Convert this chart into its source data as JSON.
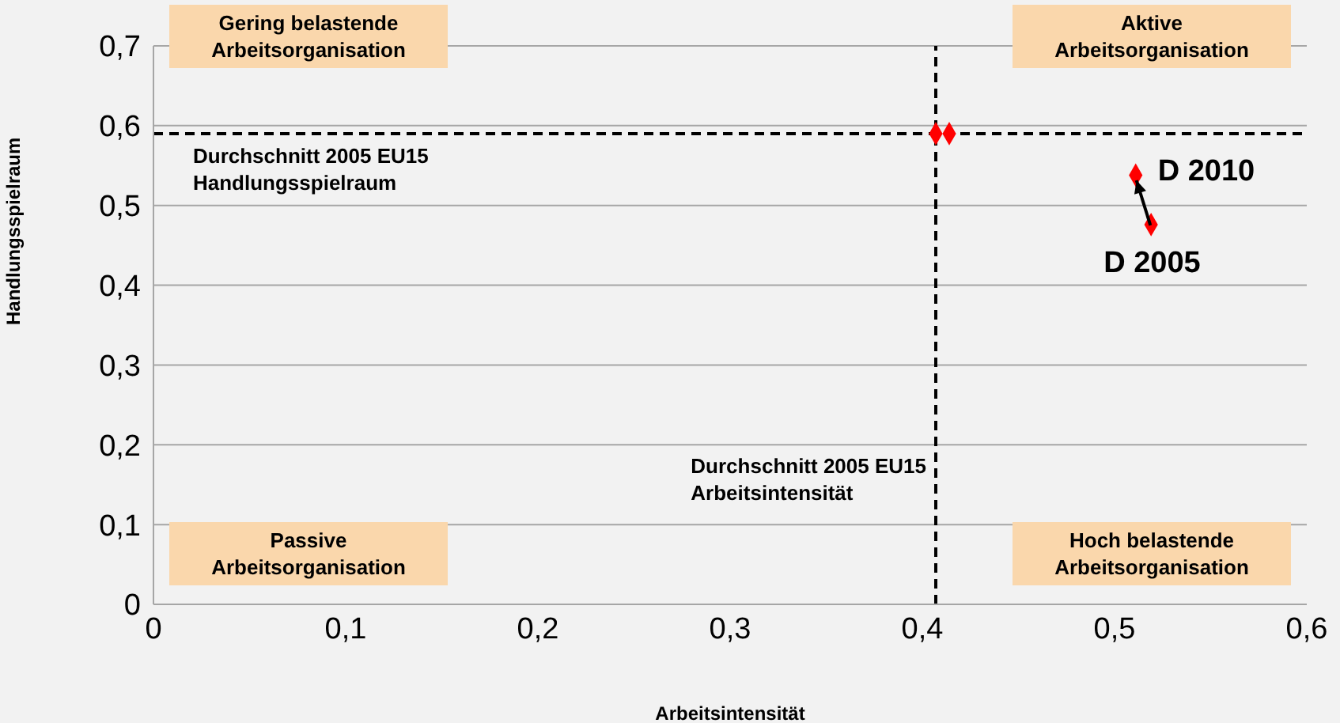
{
  "chart_data": {
    "type": "scatter",
    "xlabel": "Arbeitsintensität",
    "ylabel": "Handlungsspielraum",
    "xlim": [
      0,
      0.6
    ],
    "xticks": [
      {
        "value": 0,
        "label": "0"
      },
      {
        "value": 0.1,
        "label": "0,1"
      },
      {
        "value": 0.2,
        "label": "0,2"
      },
      {
        "value": 0.3,
        "label": "0,3"
      },
      {
        "value": 0.4,
        "label": "0,4"
      },
      {
        "value": 0.5,
        "label": "0,5"
      },
      {
        "value": 0.6,
        "label": "0,6"
      }
    ],
    "ylim": [
      0,
      0.7
    ],
    "yticks": [
      {
        "value": 0,
        "label": "0"
      },
      {
        "value": 0.1,
        "label": "0,1"
      },
      {
        "value": 0.2,
        "label": "0,2"
      },
      {
        "value": 0.3,
        "label": "0,3"
      },
      {
        "value": 0.4,
        "label": "0,4"
      },
      {
        "value": 0.5,
        "label": "0,5"
      },
      {
        "value": 0.6,
        "label": "0,6"
      },
      {
        "value": 0.7,
        "label": "0,7"
      }
    ],
    "grid": "y",
    "marker": "diamond",
    "legend": false,
    "series": [
      {
        "color": "#ff0000",
        "x": [
          0.407,
          0.414,
          0.511,
          0.519
        ],
        "values": [
          0.59,
          0.59,
          0.538,
          0.476
        ]
      }
    ],
    "ref_lines": [
      {
        "axis": "y",
        "value": 0.59,
        "label": "Durchschnitt 2005 EU15\nHandlungsspielraum",
        "color": "#000000",
        "line_style": "dashed"
      },
      {
        "axis": "x",
        "value": 0.407,
        "label": "Durchschnitt 2005 EU15\nArbeitsintensität",
        "color": "#000000",
        "line_style": "dashed"
      }
    ],
    "annotations": [
      "Gering belastende\nArbeitsorganisation",
      "Aktive\nArbeitsorganisation",
      "Passive\nArbeitsorganisation",
      "Hoch belastende\nArbeitsorganisation",
      {
        "text": "D 2010",
        "x": 0.511,
        "y": 0.538
      },
      {
        "text": "D 2005",
        "x": 0.519,
        "y": 0.476
      }
    ]
  }
}
